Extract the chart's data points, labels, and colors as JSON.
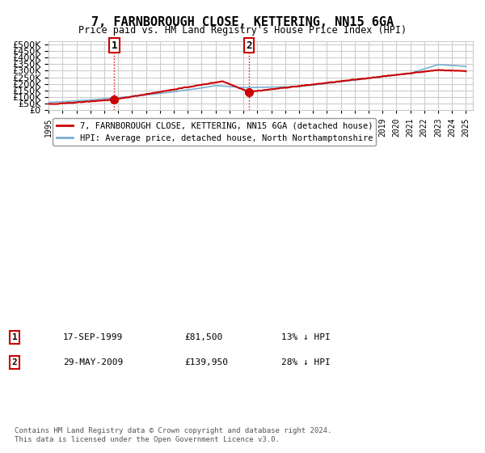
{
  "title": "7, FARNBOROUGH CLOSE, KETTERING, NN15 6GA",
  "subtitle": "Price paid vs. HM Land Registry's House Price Index (HPI)",
  "ylabel_ticks": [
    0,
    50000,
    100000,
    150000,
    200000,
    250000,
    300000,
    350000,
    400000,
    450000,
    500000
  ],
  "ylim": [
    0,
    520000
  ],
  "xlim_start": 1995.0,
  "xlim_end": 2025.5,
  "legend_line1": "7, FARNBOROUGH CLOSE, KETTERING, NN15 6GA (detached house)",
  "legend_line2": "HPI: Average price, detached house, North Northamptonshire",
  "sale1_label": "1",
  "sale1_date": "17-SEP-1999",
  "sale1_price": "£81,500",
  "sale1_hpi": "13% ↓ HPI",
  "sale1_year": 1999.71,
  "sale1_value": 81500,
  "sale2_label": "2",
  "sale2_date": "29-MAY-2009",
  "sale2_price": "£139,950",
  "sale2_hpi": "28% ↓ HPI",
  "sale2_year": 2009.41,
  "sale2_value": 139950,
  "vline_color": "#dd0000",
  "vline_style": ":",
  "red_line_color": "#cc0000",
  "blue_line_color": "#7ab0d4",
  "footer": "Contains HM Land Registry data © Crown copyright and database right 2024.\nThis data is licensed under the Open Government Licence v3.0.",
  "background_color": "#ffffff",
  "grid_color": "#cccccc"
}
